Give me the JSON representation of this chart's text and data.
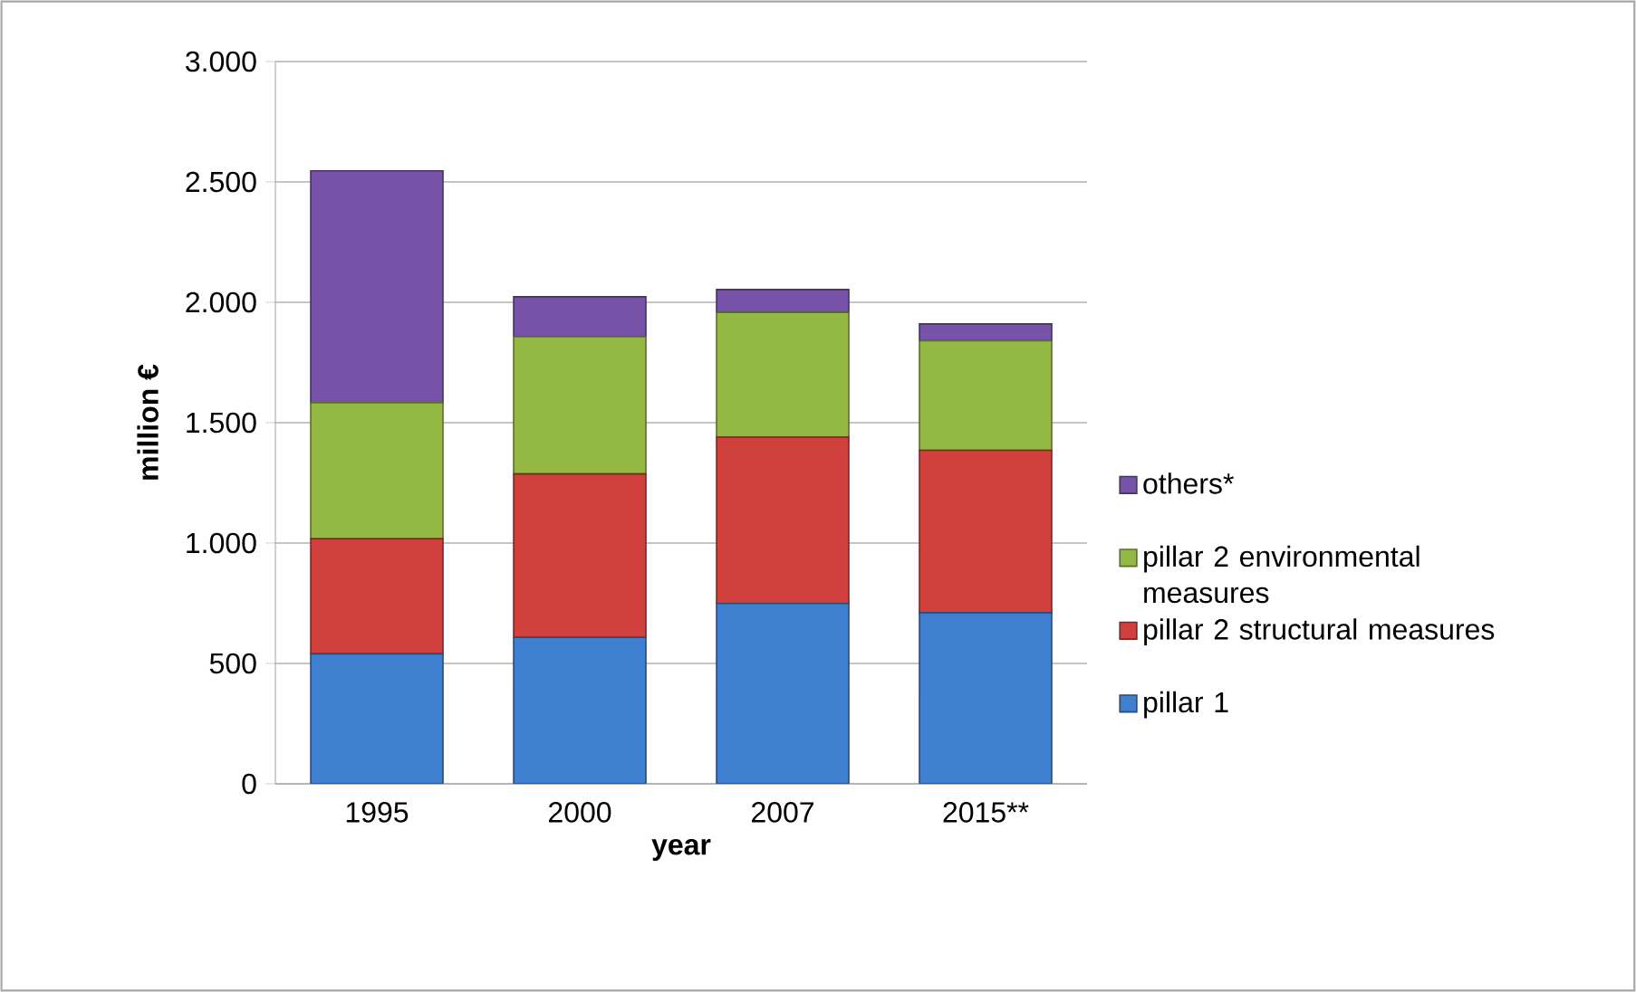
{
  "chart_data": {
    "type": "bar",
    "stacked": true,
    "xlabel": "year",
    "ylabel": "million €",
    "categories": [
      "1995",
      "2000",
      "2007",
      "2015**"
    ],
    "series": [
      {
        "name": "pillar 1",
        "color": "#3f7fcf",
        "values": [
          540,
          608,
          749,
          711
        ]
      },
      {
        "name": "pillar 2 structural measures",
        "color": "#d0403d",
        "values": [
          478,
          679,
          691,
          674
        ]
      },
      {
        "name": "pillar 2 environmental measures",
        "color": "#93b944",
        "values": [
          565,
          570,
          518,
          455
        ]
      },
      {
        "name": "others*",
        "color": "#7653a8",
        "values": [
          963,
          166,
          95,
          70
        ]
      }
    ],
    "ylim": [
      0,
      3000
    ],
    "yticks": [
      0,
      500,
      {
        "value": 1000,
        "label": "1.000"
      },
      {
        "value": 1500,
        "label": "1.500"
      },
      {
        "value": 2000,
        "label": "2.000"
      },
      {
        "value": 2500,
        "label": "2.500"
      },
      {
        "value": 3000,
        "label": "3.000"
      }
    ],
    "grid": "y",
    "legend": "right"
  }
}
